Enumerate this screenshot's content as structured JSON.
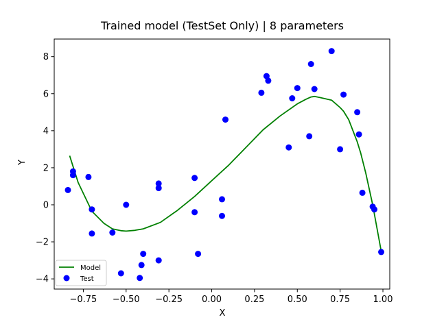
{
  "chart_data": {
    "type": "scatter",
    "title": "Trained model (TestSet Only) | 8 parameters",
    "xlabel": "X",
    "ylabel": "Y",
    "xlim": [
      -0.92,
      1.04
    ],
    "ylim": [
      -4.55,
      8.95
    ],
    "xticks": [
      -0.75,
      -0.5,
      -0.25,
      0.0,
      0.25,
      0.5,
      0.75,
      1.0
    ],
    "xtick_labels": [
      "−0.75",
      "−0.50",
      "−0.25",
      "0.00",
      "0.25",
      "0.50",
      "0.75",
      "1.00"
    ],
    "yticks": [
      -4,
      -2,
      0,
      2,
      4,
      6,
      8
    ],
    "ytick_labels": [
      "−4",
      "−2",
      "0",
      "2",
      "4",
      "6",
      "8"
    ],
    "legend": {
      "placement": "lower-left",
      "entries": [
        "Model",
        "Test"
      ]
    },
    "series": [
      {
        "name": "Model",
        "kind": "line",
        "color": "#008000",
        "x": [
          -0.83,
          -0.78,
          -0.7,
          -0.63,
          -0.58,
          -0.53,
          -0.5,
          -0.45,
          -0.4,
          -0.3,
          -0.2,
          -0.1,
          0.0,
          0.1,
          0.2,
          0.3,
          0.4,
          0.5,
          0.55,
          0.58,
          0.6,
          0.63,
          0.7,
          0.75,
          0.77,
          0.8,
          0.85,
          0.87,
          0.9,
          0.94,
          0.99
        ],
        "y": [
          2.65,
          1.2,
          -0.35,
          -1.0,
          -1.3,
          -1.4,
          -1.42,
          -1.38,
          -1.3,
          -0.95,
          -0.3,
          0.45,
          1.3,
          2.15,
          3.1,
          4.05,
          4.8,
          5.45,
          5.7,
          5.82,
          5.85,
          5.8,
          5.65,
          5.25,
          5.05,
          4.6,
          3.4,
          2.8,
          1.7,
          0.0,
          -2.5
        ]
      },
      {
        "name": "Test",
        "kind": "scatter",
        "color": "#0000ff",
        "x": [
          -0.84,
          -0.81,
          -0.81,
          -0.72,
          -0.7,
          -0.7,
          -0.58,
          -0.53,
          -0.5,
          -0.42,
          -0.41,
          -0.4,
          -0.31,
          -0.31,
          -0.31,
          -0.1,
          -0.1,
          -0.08,
          0.06,
          0.06,
          0.08,
          0.29,
          0.32,
          0.33,
          0.45,
          0.47,
          0.5,
          0.57,
          0.58,
          0.6,
          0.7,
          0.75,
          0.77,
          0.85,
          0.86,
          0.88,
          0.94,
          0.95,
          0.99
        ],
        "y": [
          0.8,
          1.8,
          1.6,
          1.5,
          -0.25,
          -1.55,
          -1.5,
          -3.7,
          0.0,
          -3.95,
          -3.25,
          -2.65,
          1.15,
          0.9,
          -3.0,
          1.45,
          -0.4,
          -2.65,
          0.3,
          -0.6,
          4.6,
          6.05,
          6.95,
          6.7,
          3.1,
          5.75,
          6.3,
          3.7,
          7.6,
          6.25,
          8.3,
          3.0,
          5.95,
          5.0,
          3.8,
          0.65,
          -0.1,
          -0.25,
          -2.55
        ]
      }
    ]
  }
}
